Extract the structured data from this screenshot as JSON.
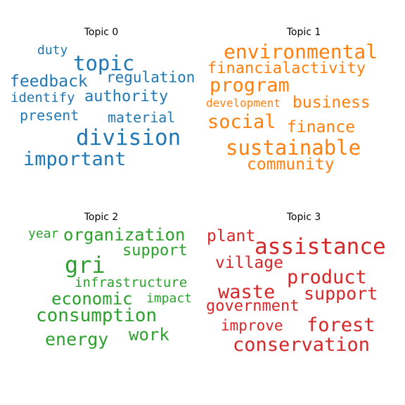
{
  "chart_data": [
    {
      "type": "wordcloud",
      "title": "Topic 0",
      "color": "#1f77b4",
      "words": [
        "topic",
        "division",
        "important",
        "feedback",
        "authority",
        "regulation",
        "material",
        "present",
        "identify",
        "duty"
      ]
    },
    {
      "type": "wordcloud",
      "title": "Topic 1",
      "color": "#ff7f0e",
      "words": [
        "sustainable",
        "environmental",
        "program",
        "social",
        "financialactivity",
        "business",
        "finance",
        "community",
        "development"
      ]
    },
    {
      "type": "wordcloud",
      "title": "Topic 2",
      "color": "#2ca02c",
      "words": [
        "gri",
        "consumption",
        "organization",
        "economic",
        "energy",
        "support",
        "infrastructure",
        "work",
        "impact",
        "year"
      ]
    },
    {
      "type": "wordcloud",
      "title": "Topic 3",
      "color": "#d62728",
      "words": [
        "assistance",
        "conservation",
        "forest",
        "waste",
        "product",
        "support",
        "village",
        "government",
        "plant",
        "improve"
      ]
    }
  ]
}
